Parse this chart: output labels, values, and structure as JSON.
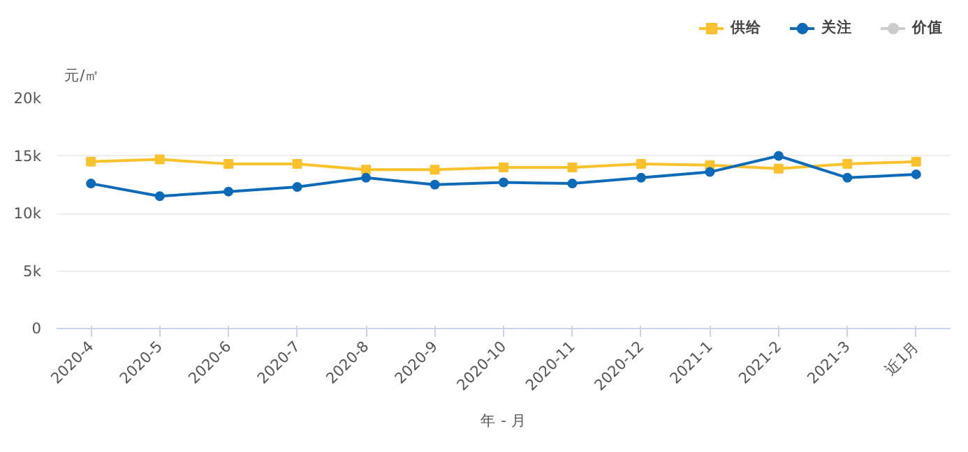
{
  "chart_data": {
    "type": "line",
    "ylabel": "元/㎡",
    "xlabel": "年 - 月",
    "categories": [
      "2020-4",
      "2020-5",
      "2020-6",
      "2020-7",
      "2020-8",
      "2020-9",
      "2020-10",
      "2020-11",
      "2020-12",
      "2021-1",
      "2021-2",
      "2021-3",
      "近1月"
    ],
    "series": [
      {
        "name": "供给",
        "color": "#f9c12c",
        "marker": "square",
        "values": [
          14500,
          14700,
          14300,
          14300,
          13800,
          13800,
          14000,
          14000,
          14300,
          14200,
          13900,
          14300,
          14500
        ]
      },
      {
        "name": "关注",
        "color": "#0c6ab9",
        "marker": "circle",
        "values": [
          12600,
          11500,
          11900,
          12300,
          13100,
          12500,
          12700,
          12600,
          13100,
          13600,
          15000,
          13100,
          13400
        ]
      },
      {
        "name": "价值",
        "color": "#cccccc",
        "marker": "circle",
        "values": [
          null,
          null,
          null,
          null,
          null,
          null,
          null,
          null,
          null,
          null,
          null,
          null,
          null
        ]
      }
    ],
    "ylim": [
      0,
      20000
    ],
    "yticks": [
      0,
      {
        "value": 5000,
        "label": "5k"
      },
      {
        "value": 10000,
        "label": "10k"
      },
      {
        "value": 15000,
        "label": "15k"
      },
      {
        "value": 20000,
        "label": "20k"
      }
    ],
    "grid": "y",
    "legend": "top right",
    "line_style": "solid"
  }
}
